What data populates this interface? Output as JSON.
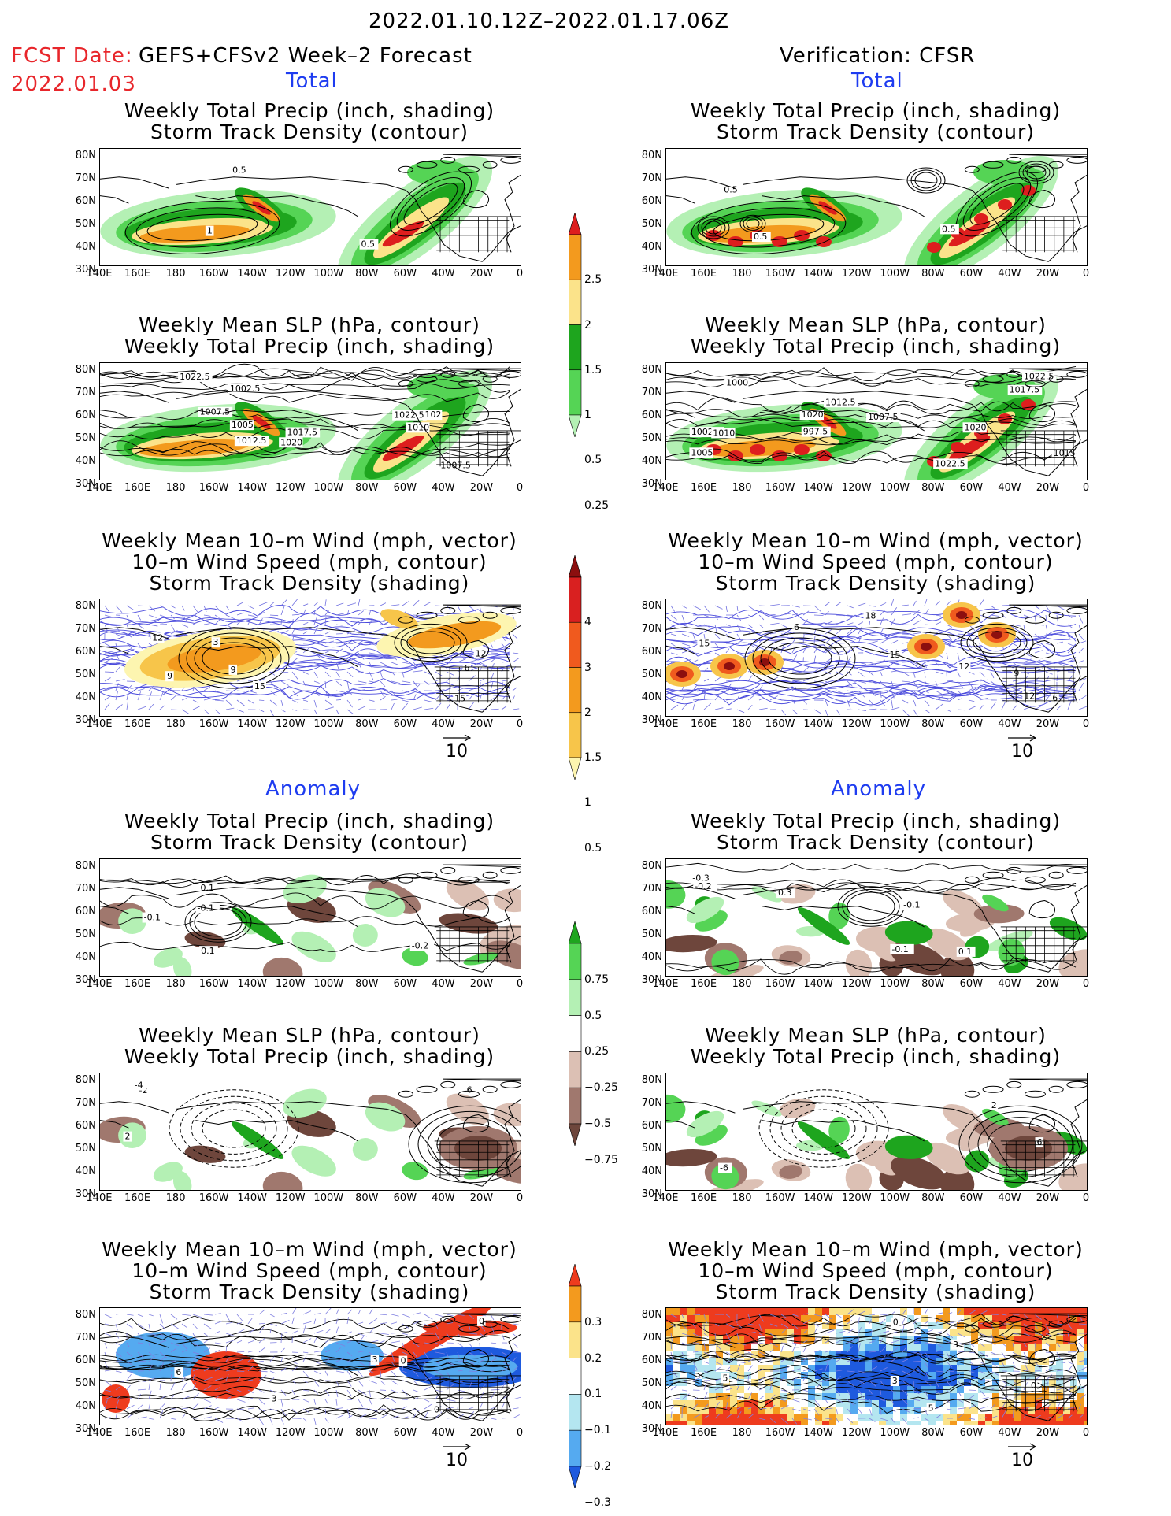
{
  "header": {
    "date_range": "2022.01.10.12Z–2022.01.17.06Z",
    "fcst_date_label": "FCST Date:",
    "fcst_date_value": "2022.01.03",
    "forecast_name": "GEFS+CFSv2 Week–2 Forecast",
    "verification": "Verification: CFSR"
  },
  "sections": {
    "total": "Total",
    "anomaly": "Anomaly"
  },
  "panel_titles": {
    "precip_storm": [
      "Weekly Total Precip (inch, shading)",
      "Storm Track Density (contour)"
    ],
    "slp_precip": [
      "Weekly Mean SLP (hPa, contour)",
      "Weekly Total Precip (inch, shading)"
    ],
    "wind_storm": [
      "Weekly Mean 10–m Wind (mph, vector)",
      "10–m Wind Speed (mph, contour)",
      "Storm Track Density (shading)"
    ]
  },
  "axes": {
    "lat_ticks": [
      "80N",
      "70N",
      "60N",
      "50N",
      "40N",
      "30N"
    ],
    "lon_ticks": [
      "140E",
      "160E",
      "180",
      "160W",
      "140W",
      "120W",
      "100W",
      "80W",
      "60W",
      "40W",
      "20W",
      "0"
    ]
  },
  "vector_reference": "10",
  "colorbars": {
    "total_precip": {
      "labels": [
        "2.5",
        "2",
        "1.5",
        "1",
        "0.5",
        "0.25"
      ],
      "colors": [
        "#dd1e1e",
        "#f39a1e",
        "#fbe38a",
        "#1ea51e",
        "#55d455",
        "#b4f0b4"
      ]
    },
    "total_storm": {
      "labels": [
        "4",
        "3",
        "2",
        "1.5",
        "1",
        "0.5"
      ],
      "colors": [
        "#8c0f0f",
        "#d92020",
        "#f05a1e",
        "#f39a1e",
        "#f7c54a",
        "#fdf5b0"
      ]
    },
    "anom_precip": {
      "labels": [
        "0.75",
        "0.5",
        "0.25",
        "−0.25",
        "−0.5",
        "−0.75"
      ],
      "colors": [
        "#1ea51e",
        "#55d455",
        "#b4f0b4",
        "#ffffff",
        "#dcc0b4",
        "#a0786e",
        "#6e463c"
      ]
    },
    "anom_storm": {
      "labels": [
        "0.3",
        "0.2",
        "0.1",
        "−0.1",
        "−0.2",
        "−0.3"
      ],
      "colors": [
        "#ee3b1e",
        "#f39a1e",
        "#fbe38a",
        "#ffffff",
        "#b4e6f0",
        "#55aaf0",
        "#1e5ade"
      ]
    }
  },
  "contour_labels": {
    "L_total_precip": [
      "0.5",
      "0.5",
      "1"
    ],
    "R_total_precip": [
      "0.5",
      "0.5",
      "0.5"
    ],
    "L_total_slp": [
      "1017.5",
      "1007.5",
      "1022.5",
      "1010",
      "1007.5",
      "1002.5",
      "1020",
      "1005",
      "1012.5",
      "1022.5",
      "102"
    ],
    "R_total_slp": [
      "1007.5",
      "1002.5",
      "1000",
      "1020",
      "1022.5",
      "1017.5",
      "1005",
      "1015",
      "1020",
      "1022.5",
      "997.5",
      "1010",
      "1012.5"
    ],
    "L_total_wind": [
      "3",
      "9",
      "12",
      "15",
      "6",
      "12",
      "15",
      "9"
    ],
    "R_total_wind": [
      "6",
      "12",
      "15",
      "9",
      "12",
      "15",
      "18",
      "6"
    ],
    "L_anom_precip": [
      "-0.1",
      "0.1",
      "-0.2",
      "-0.1",
      "0.1"
    ],
    "R_anom_precip": [
      "0.3",
      "-0.3",
      "0.1",
      "-0.1",
      "-0.2",
      "-0.1"
    ],
    "L_anom_slp": [
      "-2",
      "-4",
      "2",
      "6"
    ],
    "R_anom_slp": [
      "-6",
      "2",
      "6"
    ],
    "L_anom_wind": [
      "3",
      "0",
      "6",
      "3",
      "0",
      "0"
    ],
    "R_anom_wind": [
      "3",
      "3",
      "5",
      "0",
      "5",
      "0"
    ]
  }
}
